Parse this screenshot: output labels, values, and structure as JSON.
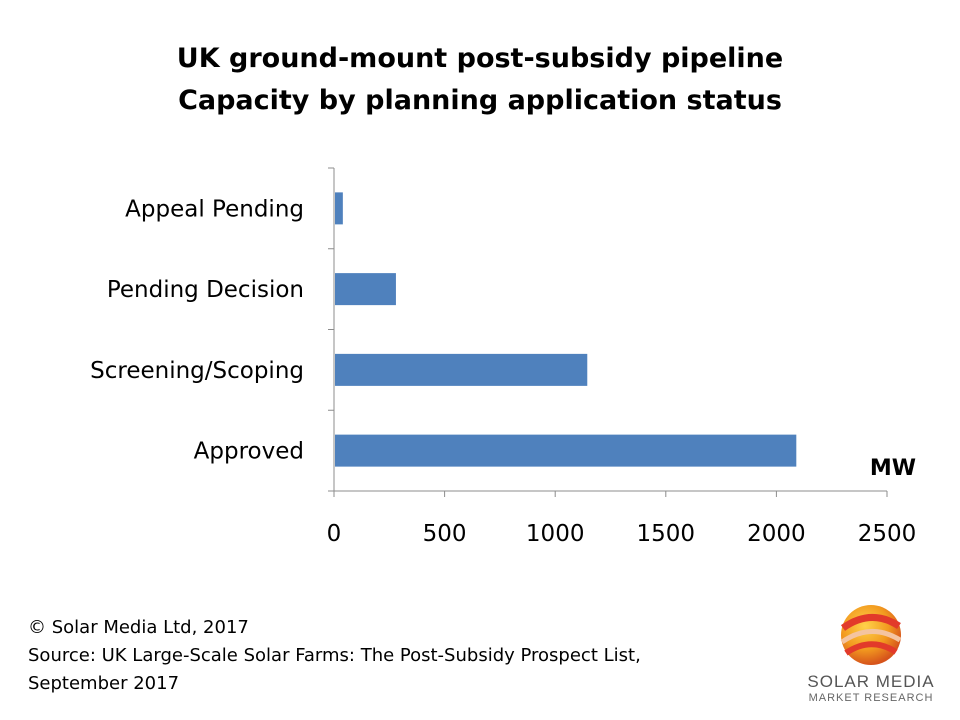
{
  "chart_data": {
    "type": "bar",
    "orientation": "horizontal",
    "title": "UK ground-mount post-subsidy pipeline",
    "subtitle": "Capacity by  planning application status",
    "categories": [
      "Appeal Pending",
      "Pending Decision",
      "Screening/Scoping",
      "Approved"
    ],
    "values": [
      40,
      280,
      1145,
      2090
    ],
    "xlabel": "MW",
    "xlim": [
      0,
      2500
    ],
    "xticks": [
      "0",
      "500",
      "1000",
      "1500",
      "2000",
      "2500"
    ],
    "bar_color": "#4F81BD",
    "grid": false
  },
  "footer": {
    "copyright": "© Solar Media Ltd, 2017",
    "source_line1": "Source: UK Large-Scale Solar Farms: The Post-Subsidy Prospect List,",
    "source_line2": "September 2017"
  },
  "logo": {
    "name": "SOLAR MEDIA",
    "tagline": "MARKET RESEARCH",
    "icon": "sphere-ribbon-logo"
  }
}
